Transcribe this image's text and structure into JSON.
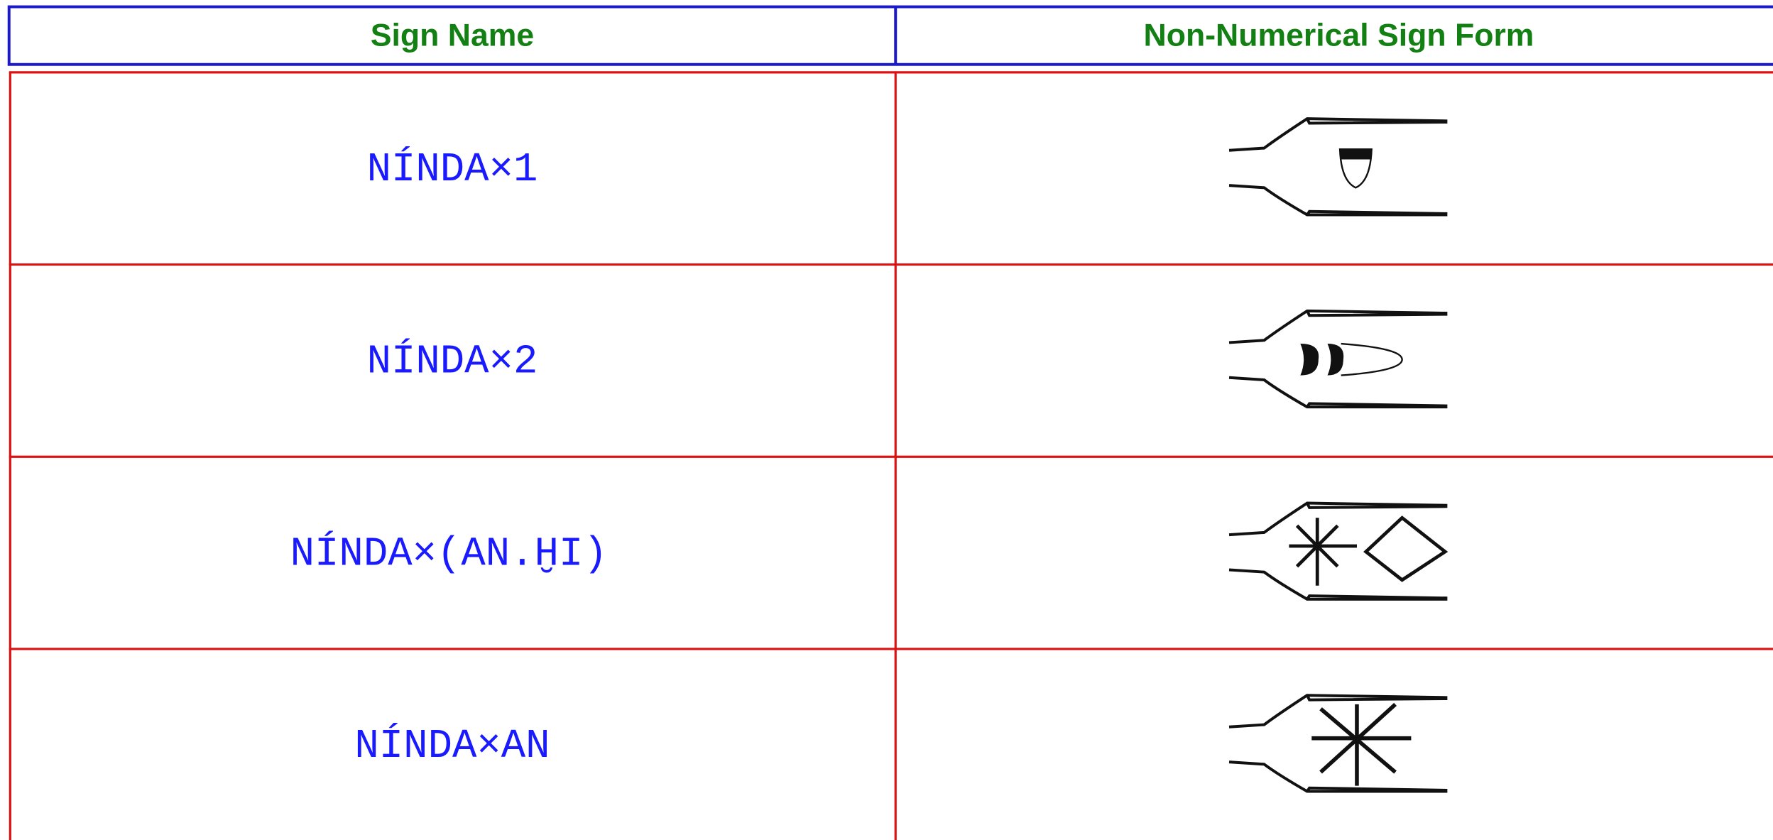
{
  "table": {
    "columns": [
      "Sign Name",
      "Non-Numerical Sign Form"
    ],
    "rows": [
      [
        "NÍNDA×1"
      ],
      [
        "NÍNDA×2"
      ],
      [
        "NÍNDA×(AN.ḪI)"
      ],
      [
        "NÍNDA×AN"
      ]
    ]
  }
}
